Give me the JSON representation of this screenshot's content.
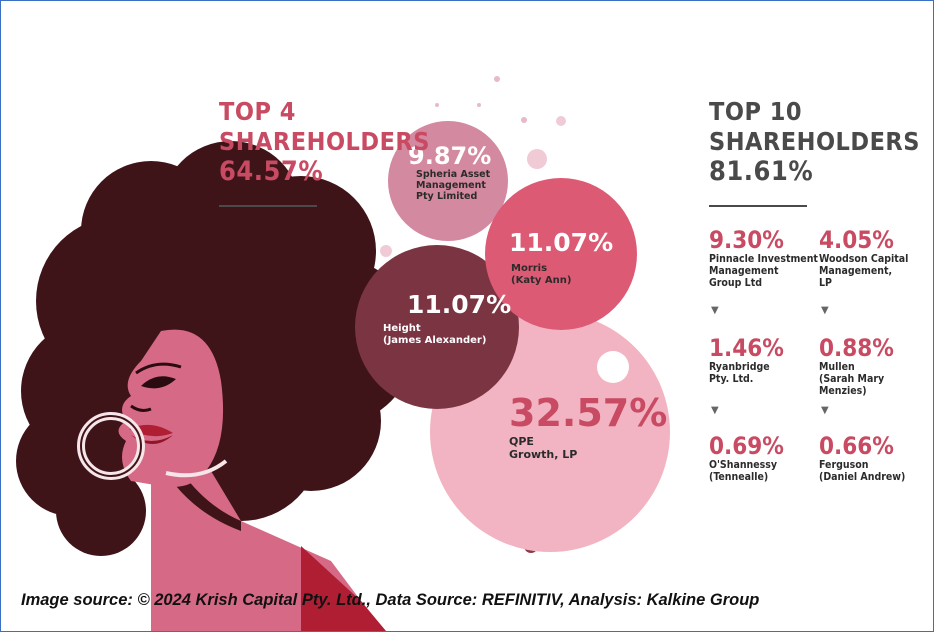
{
  "top4": {
    "line1": "TOP 4",
    "line2": "SHAREHOLDERS",
    "value": "64.57%"
  },
  "top10": {
    "line1": "TOP 10",
    "line2": "SHAREHOLDERS",
    "value": "81.61%"
  },
  "bubbles": [
    {
      "pct": "9.87%",
      "name1": "Spheria Asset",
      "name2": "Management",
      "name3": "Pty Limited",
      "color": "#d3899f"
    },
    {
      "pct": "11.07%",
      "name1": "Morris",
      "name2": "(Katy Ann)",
      "color": "#dc5a73"
    },
    {
      "pct": "11.07%",
      "name1": "Height",
      "name2": "(James Alexander)",
      "color": "#7b3442"
    },
    {
      "pct": "32.57%",
      "name1": "QPE",
      "name2": "Growth, LP",
      "color": "#f2b4c2"
    }
  ],
  "list": [
    {
      "pct": "9.30%",
      "lines": [
        "Pinnacle Investment",
        "Management",
        "Group Ltd"
      ]
    },
    {
      "pct": "4.05%",
      "lines": [
        "Woodson Capital",
        "Management,",
        "LP"
      ]
    },
    {
      "pct": "1.46%",
      "lines": [
        "Ryanbridge",
        "Pty. Ltd."
      ]
    },
    {
      "pct": "0.88%",
      "lines": [
        "Mullen",
        "(Sarah Mary Menzies)"
      ]
    },
    {
      "pct": "0.69%",
      "lines": [
        "O'Shannessy",
        "(Tennealle)"
      ]
    },
    {
      "pct": "0.66%",
      "lines": [
        "Ferguson",
        "(Daniel Andrew)"
      ]
    }
  ],
  "arrow_glyph": "▼",
  "footer": "Image source: © 2024 Krish Capital Pty. Ltd., Data Source: REFINITIV, Analysis: Kalkine Group",
  "colors": {
    "pink": "#c84b63",
    "dark": "#4a4a4a",
    "hair": "#3f1419",
    "skin": "#d66a86"
  },
  "chart_data": {
    "type": "bubble",
    "title": "TOP 4 SHAREHOLDERS 64.57%",
    "series": [
      {
        "name": "Spheria Asset Management Pty Limited",
        "value": 9.87
      },
      {
        "name": "Morris (Katy Ann)",
        "value": 11.07
      },
      {
        "name": "Height (James Alexander)",
        "value": 11.07
      },
      {
        "name": "QPE Growth, LP",
        "value": 32.57
      }
    ],
    "top10_total": 81.61,
    "top10_list": [
      {
        "name": "Pinnacle Investment Management Group Ltd",
        "value": 9.3
      },
      {
        "name": "Woodson Capital Management, LP",
        "value": 4.05
      },
      {
        "name": "Ryanbridge Pty. Ltd.",
        "value": 1.46
      },
      {
        "name": "Mullen (Sarah Mary Menzies)",
        "value": 0.88
      },
      {
        "name": "O'Shannessy (Tennealle)",
        "value": 0.69
      },
      {
        "name": "Ferguson (Daniel Andrew)",
        "value": 0.66
      }
    ]
  }
}
